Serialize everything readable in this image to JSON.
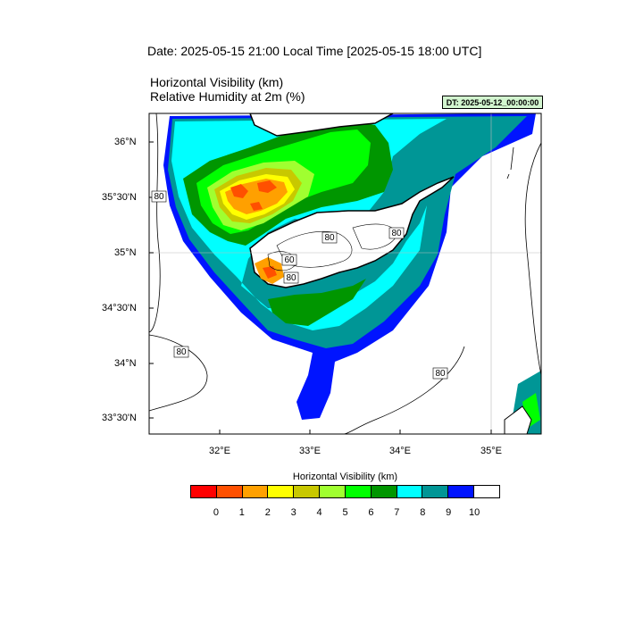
{
  "header": {
    "date_title": "Date: 2025-05-15  21:00 Local Time [2025-05-15  18:00 UTC]",
    "var_title_1": "Horizontal Visibility   (km)",
    "var_title_2": "Relative Humidity at 2m   (%)",
    "dt_badge": "DT: 2025-05-12_00:00:00"
  },
  "map": {
    "lat_labels": [
      "36°N",
      "35°30'N",
      "35°N",
      "34°30'N",
      "34°N",
      "33°30'N"
    ],
    "lon_labels": [
      "32°E",
      "33°E",
      "34°E",
      "35°E"
    ],
    "contour_labels": [
      "80",
      "80",
      "80",
      "80",
      "80",
      "60",
      "80"
    ]
  },
  "colorbar": {
    "title": "Horizontal Visibility  (km)",
    "tick_labels": [
      "0",
      "1",
      "2",
      "3",
      "4",
      "5",
      "6",
      "7",
      "8",
      "9",
      "10"
    ],
    "colors": [
      "#ff0000",
      "#ff5000",
      "#ffa000",
      "#ffff00",
      "#c8c800",
      "#a0ff30",
      "#00ff00",
      "#009600",
      "#00ffff",
      "#009696",
      "#0014ff",
      "#ffffff"
    ]
  }
}
